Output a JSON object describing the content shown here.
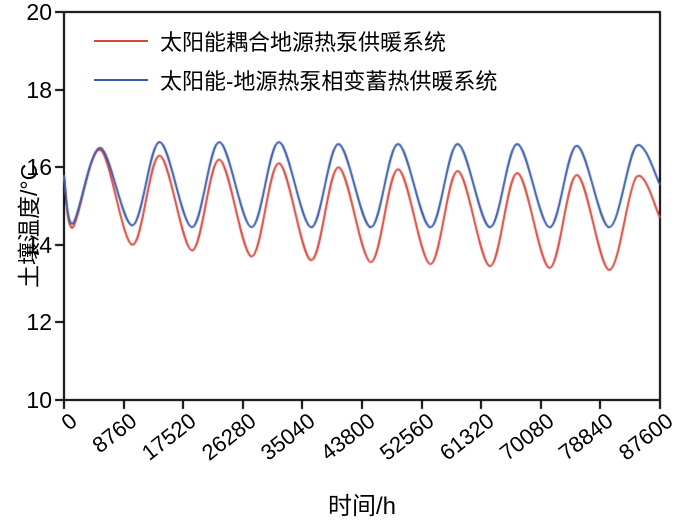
{
  "chart_data": {
    "type": "line",
    "xlabel": "时间/h",
    "ylabel": "土壤温度/°C",
    "xlim": [
      0,
      87600
    ],
    "ylim": [
      10,
      20
    ],
    "x_ticks": [
      0,
      8760,
      17520,
      26280,
      35040,
      43800,
      52560,
      61320,
      70080,
      78840,
      87600
    ],
    "y_ticks": [
      10,
      12,
      14,
      16,
      18,
      20
    ],
    "grid": false,
    "legend_position": "top-left",
    "series": [
      {
        "name": "太阳能耦合地源热泵供暖系统",
        "color": "#d8463a",
        "points": [
          [
            0,
            15.75
          ],
          [
            1300,
            14.45
          ],
          [
            5300,
            16.45
          ],
          [
            10060,
            14.0
          ],
          [
            14060,
            16.3
          ],
          [
            18820,
            13.85
          ],
          [
            22820,
            16.2
          ],
          [
            27580,
            13.7
          ],
          [
            31580,
            16.1
          ],
          [
            36340,
            13.6
          ],
          [
            40340,
            16.0
          ],
          [
            45100,
            13.55
          ],
          [
            49100,
            15.95
          ],
          [
            53860,
            13.5
          ],
          [
            57860,
            15.9
          ],
          [
            62620,
            13.45
          ],
          [
            66620,
            15.85
          ],
          [
            71380,
            13.4
          ],
          [
            75380,
            15.8
          ],
          [
            80140,
            13.35
          ],
          [
            84140,
            15.75
          ],
          [
            87600,
            14.7
          ]
        ]
      },
      {
        "name": "太阳能-地源热泵相变蓄热供暖系统",
        "color": "#3558a8",
        "points": [
          [
            0,
            15.8
          ],
          [
            1300,
            14.55
          ],
          [
            5300,
            16.5
          ],
          [
            10060,
            14.5
          ],
          [
            14060,
            16.65
          ],
          [
            18820,
            14.45
          ],
          [
            22820,
            16.65
          ],
          [
            27580,
            14.45
          ],
          [
            31580,
            16.65
          ],
          [
            36340,
            14.45
          ],
          [
            40340,
            16.6
          ],
          [
            45100,
            14.45
          ],
          [
            49100,
            16.6
          ],
          [
            53860,
            14.45
          ],
          [
            57860,
            16.6
          ],
          [
            62620,
            14.45
          ],
          [
            66620,
            16.6
          ],
          [
            71380,
            14.45
          ],
          [
            75380,
            16.55
          ],
          [
            80140,
            14.45
          ],
          [
            84140,
            16.55
          ],
          [
            87600,
            15.55
          ]
        ]
      }
    ]
  }
}
